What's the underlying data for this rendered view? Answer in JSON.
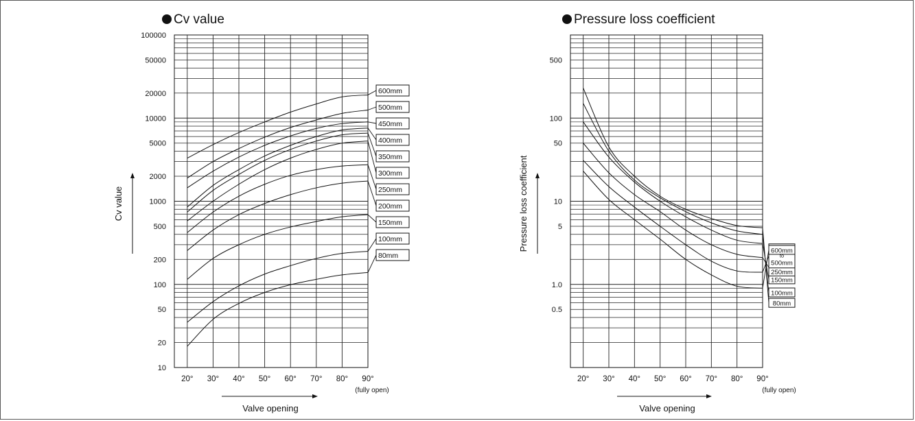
{
  "titles": {
    "left": "Cv value",
    "right": "Pressure loss coefficient"
  },
  "chart_data": [
    {
      "type": "line",
      "title": "Cv value",
      "xlabel": "Valve opening",
      "ylabel": "Cv value",
      "x_ticks": [
        "20°",
        "30°",
        "40°",
        "50°",
        "60°",
        "70°",
        "80°",
        "90°"
      ],
      "x_note": "(fully open)",
      "xlim": [
        15,
        90
      ],
      "y_scale": "log",
      "ylim": [
        10,
        100000
      ],
      "y_ticks": [
        {
          "label": "100000",
          "v": 100000
        },
        {
          "label": "50000",
          "v": 50000
        },
        {
          "label": "20000",
          "v": 20000
        },
        {
          "label": "10000",
          "v": 10000
        },
        {
          "label": "5000",
          "v": 5000
        },
        {
          "label": "2000",
          "v": 2000
        },
        {
          "label": "1000",
          "v": 1000
        },
        {
          "label": "500",
          "v": 500
        },
        {
          "label": "200",
          "v": 200
        },
        {
          "label": "100",
          "v": 100
        },
        {
          "label": "50",
          "v": 50
        },
        {
          "label": "20",
          "v": 20
        },
        {
          "label": "10",
          "v": 10
        }
      ],
      "x": [
        20,
        30,
        40,
        50,
        60,
        70,
        80,
        90
      ],
      "series": [
        {
          "name": "600mm",
          "values": [
            3300,
            4800,
            6700,
            9000,
            11800,
            14800,
            18000,
            19000
          ]
        },
        {
          "name": "500mm",
          "values": [
            1900,
            3000,
            4300,
            5900,
            7700,
            9500,
            11400,
            12500
          ]
        },
        {
          "name": "450mm",
          "values": [
            1450,
            2300,
            3400,
            4700,
            6100,
            7500,
            8600,
            9000
          ]
        },
        {
          "name": "400mm",
          "values": [
            850,
            1550,
            2400,
            3500,
            4700,
            6000,
            7200,
            7600
          ]
        },
        {
          "name": "350mm",
          "values": [
            740,
            1350,
            2100,
            3100,
            4200,
            5300,
            6300,
            6600
          ]
        },
        {
          "name": "300mm",
          "values": [
            580,
            1000,
            1600,
            2400,
            3300,
            4200,
            5000,
            5300
          ]
        },
        {
          "name": "250mm",
          "values": [
            420,
            740,
            1150,
            1600,
            2050,
            2400,
            2650,
            2750
          ]
        },
        {
          "name": "200mm",
          "values": [
            255,
            450,
            690,
            940,
            1200,
            1450,
            1650,
            1750
          ]
        },
        {
          "name": "150mm",
          "values": [
            115,
            205,
            300,
            400,
            490,
            570,
            650,
            690
          ]
        },
        {
          "name": "100mm",
          "values": [
            35,
            62,
            96,
            133,
            168,
            205,
            236,
            250
          ]
        },
        {
          "name": "80mm",
          "values": [
            18,
            38,
            59,
            80,
            99,
            115,
            130,
            139
          ]
        }
      ]
    },
    {
      "type": "line",
      "title": "Pressure loss coefficient",
      "xlabel": "Valve opening",
      "ylabel": "Pressure loss coefficient",
      "x_ticks": [
        "20°",
        "30°",
        "40°",
        "50°",
        "60°",
        "70°",
        "80°",
        "90°"
      ],
      "x_note": "(fully open)",
      "xlim": [
        15,
        90
      ],
      "y_scale": "log",
      "ylim": [
        0.1,
        1000
      ],
      "y_ticks": [
        {
          "label": "500",
          "v": 500
        },
        {
          "label": "100",
          "v": 100
        },
        {
          "label": "50",
          "v": 50
        },
        {
          "label": "10",
          "v": 10
        },
        {
          "label": "5",
          "v": 5
        },
        {
          "label": "1.0",
          "v": 1.0
        },
        {
          "label": "0.5",
          "v": 0.5
        }
      ],
      "x": [
        20,
        30,
        40,
        50,
        60,
        70,
        80,
        90
      ],
      "series": [
        {
          "name": "80mm",
          "values": [
            230,
            45,
            20,
            11.5,
            8,
            6.2,
            5.1,
            4.8
          ]
        },
        {
          "name": "100mm",
          "values": [
            150,
            40,
            18,
            11,
            7.5,
            5.5,
            4.4,
            4.0
          ]
        },
        {
          "name": "150mm",
          "values": [
            90,
            34,
            17,
            10,
            6.5,
            4.5,
            3.4,
            3.1
          ]
        },
        {
          "name": "200mm 250mm",
          "values": [
            50,
            22,
            12,
            7.5,
            4.5,
            3.0,
            2.3,
            2.1
          ]
        },
        {
          "name": "300mm to 500mm",
          "values": [
            31,
            15,
            8.5,
            5.0,
            3.0,
            1.9,
            1.45,
            1.4
          ]
        },
        {
          "name": "600mm",
          "values": [
            23,
            10.5,
            6.0,
            3.5,
            2.0,
            1.3,
            0.95,
            0.9
          ]
        }
      ],
      "legend_values": [
        0.6,
        0.8,
        1.15,
        1.6,
        2.2,
        2.6
      ]
    }
  ]
}
